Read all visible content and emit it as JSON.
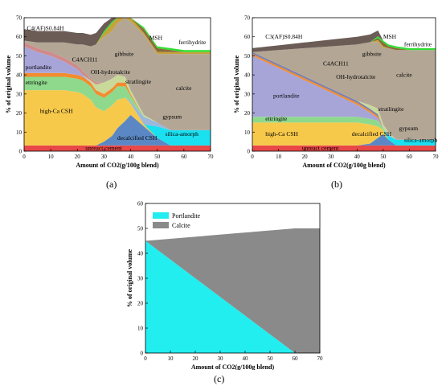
{
  "chart_data": [
    {
      "type": "area",
      "panel_label": "(a)",
      "xlabel": "Amount of CO2(g/100g blend)",
      "ylabel": "% of original volume",
      "xlim": [
        0,
        70
      ],
      "ylim": [
        0,
        70
      ],
      "xticks": [
        0,
        10,
        20,
        30,
        40,
        50,
        60,
        70
      ],
      "yticks": [
        0,
        10,
        20,
        30,
        40,
        50,
        60,
        70
      ],
      "x": [
        0,
        5,
        10,
        15,
        20,
        22,
        25,
        27,
        30,
        33,
        35,
        38,
        40,
        45,
        50,
        55,
        60,
        65,
        70
      ],
      "series": [
        {
          "name": "unreacted cement",
          "color": "#e84848",
          "values": [
            3,
            3,
            3,
            3,
            3,
            3,
            3,
            3,
            3,
            3,
            3,
            3,
            3,
            3,
            3,
            3,
            3,
            3,
            3
          ]
        },
        {
          "name": "decalcified CSH",
          "color": "#5b88c4",
          "values": [
            0,
            0,
            0,
            0,
            0,
            0,
            0,
            0,
            2,
            5,
            9,
            13,
            16,
            10,
            4,
            0,
            0,
            0,
            0
          ]
        },
        {
          "name": "high-Ca CSH",
          "color": "#f7c94b",
          "values": [
            29,
            29,
            29,
            29,
            28,
            27,
            24,
            20,
            16,
            16,
            15,
            12,
            6,
            1,
            0,
            0,
            0,
            0,
            0
          ]
        },
        {
          "name": "silica-amorph",
          "color": "#1ae0f0",
          "values": [
            0,
            0,
            0,
            0,
            0,
            0,
            0,
            0,
            0,
            0,
            0,
            0,
            0,
            0,
            6,
            8,
            8,
            8,
            8
          ]
        },
        {
          "name": "gypsum",
          "color": "#9ab7dc",
          "values": [
            0,
            0,
            0,
            0,
            0,
            0,
            0,
            0,
            0,
            0,
            0,
            0,
            1,
            4,
            2,
            0,
            0,
            0,
            0
          ]
        },
        {
          "name": "ettringite",
          "color": "#8fd98d",
          "values": [
            7,
            7,
            7,
            7,
            7,
            7,
            7,
            7,
            7,
            7,
            7,
            6,
            3,
            0,
            0,
            0,
            0,
            0,
            0
          ]
        },
        {
          "name": "OH-hydrotalcite",
          "color": "#f28c2e",
          "values": [
            2,
            2,
            2,
            2,
            2,
            2,
            2,
            2,
            2,
            2,
            2,
            2,
            1,
            0,
            0,
            0,
            0,
            0,
            0
          ]
        },
        {
          "name": "portlandite",
          "color": "#a7a5d8",
          "values": [
            14,
            11,
            9,
            6,
            3,
            1,
            0,
            0,
            0,
            0,
            0,
            0,
            0,
            0,
            0,
            0,
            0,
            0,
            0
          ]
        },
        {
          "name": "stratlingite",
          "color": "#c9d99a",
          "values": [
            0,
            0,
            0,
            0,
            0,
            0,
            1,
            3,
            6,
            5,
            4,
            3,
            2,
            1,
            0,
            0,
            0,
            0,
            0
          ]
        },
        {
          "name": "C4ACH11",
          "color": "#d08a8a",
          "values": [
            2,
            2,
            2,
            2,
            2,
            2,
            1,
            1,
            0,
            0,
            0,
            0,
            0,
            0,
            0,
            0,
            0,
            0,
            0
          ]
        },
        {
          "name": "calcite",
          "color": "#b3a695",
          "values": [
            1,
            3,
            5,
            8,
            11,
            14,
            17,
            20,
            24,
            25,
            27,
            31,
            36,
            42,
            36,
            40,
            40,
            40,
            40
          ]
        },
        {
          "name": "gibbsite",
          "color": "#c6a23a",
          "values": [
            0,
            0,
            0,
            0,
            0,
            0,
            0,
            0,
            2,
            4,
            3,
            3,
            2,
            1,
            1,
            1,
            1,
            1,
            1
          ]
        },
        {
          "name": "MSH",
          "color": "#8a6a3a",
          "values": [
            0,
            0,
            0,
            0,
            0,
            0,
            0,
            0,
            0,
            0,
            2,
            3,
            3,
            2,
            2,
            1,
            0,
            0,
            0
          ]
        },
        {
          "name": "ferrihydrite",
          "color": "#33dd33",
          "values": [
            0,
            0,
            0,
            0,
            0,
            0,
            0,
            0,
            1,
            1,
            1,
            1,
            1,
            1,
            1,
            1,
            1,
            1,
            1
          ]
        },
        {
          "name": "C4(AF)S0.84H",
          "color": "#6b5c56",
          "values": [
            6,
            6,
            6,
            6,
            6,
            6,
            6,
            6,
            4,
            2,
            1,
            0,
            0,
            0,
            0,
            0,
            0,
            0,
            0
          ]
        }
      ]
    },
    {
      "type": "area",
      "panel_label": "(b)",
      "xlabel": "Amount of CO2(g/100g blend)",
      "ylabel": "% of original volume",
      "xlim": [
        0,
        70
      ],
      "ylim": [
        0,
        70
      ],
      "xticks": [
        0,
        10,
        20,
        30,
        40,
        50,
        60,
        70
      ],
      "yticks": [
        0,
        10,
        20,
        30,
        40,
        50,
        60,
        70
      ],
      "x": [
        0,
        10,
        20,
        30,
        40,
        45,
        48,
        50,
        52,
        55,
        60,
        65,
        70
      ],
      "series": [
        {
          "name": "unreacted cement",
          "color": "#e84848",
          "values": [
            3,
            3,
            3,
            3,
            3,
            3,
            3,
            3,
            3,
            3,
            3,
            3,
            3
          ]
        },
        {
          "name": "decalcified CSH",
          "color": "#5b88c4",
          "values": [
            0,
            0,
            0,
            0,
            0,
            1,
            4,
            6,
            3,
            0,
            0,
            0,
            0
          ]
        },
        {
          "name": "high-Ca CSH",
          "color": "#f7c94b",
          "values": [
            12,
            12,
            12,
            12,
            12,
            10,
            6,
            2,
            0,
            0,
            0,
            0,
            0
          ]
        },
        {
          "name": "silica-amorph",
          "color": "#1ae0f0",
          "values": [
            0,
            0,
            0,
            0,
            0,
            0,
            0,
            0,
            2,
            3,
            3,
            3,
            3
          ]
        },
        {
          "name": "gypsum",
          "color": "#9ab7dc",
          "values": [
            0,
            0,
            0,
            0,
            0,
            0,
            0,
            0,
            1,
            0,
            0,
            0,
            0
          ]
        },
        {
          "name": "ettringite",
          "color": "#8fd98d",
          "values": [
            3,
            3,
            3,
            3,
            3,
            3,
            3,
            1,
            0,
            0,
            0,
            0,
            0
          ]
        },
        {
          "name": "portlandite",
          "color": "#a7a5d8",
          "values": [
            32,
            25.6,
            19.2,
            12.8,
            6.4,
            3.2,
            1.3,
            0,
            0,
            0,
            0,
            0,
            0
          ]
        },
        {
          "name": "OH-hydrotalcite",
          "color": "#f28c2e",
          "values": [
            1,
            1,
            1,
            1,
            1,
            1,
            1,
            0,
            0,
            0,
            0,
            0,
            0
          ]
        },
        {
          "name": "C4ACH11",
          "color": "#7b7fae",
          "values": [
            1,
            1,
            1,
            1,
            1,
            1,
            1,
            0,
            0,
            0,
            0,
            0,
            0
          ]
        },
        {
          "name": "stratlingite",
          "color": "#c9d99a",
          "values": [
            0,
            0,
            0,
            0,
            0,
            2,
            3,
            2,
            1,
            0,
            0,
            0,
            0
          ]
        },
        {
          "name": "calcite",
          "color": "#b3a695",
          "values": [
            0,
            7.4,
            14.8,
            22.2,
            29.6,
            33,
            35,
            40,
            44,
            47,
            47,
            47,
            47
          ]
        },
        {
          "name": "gibbsite",
          "color": "#c6a23a",
          "values": [
            0,
            0,
            0,
            0,
            0,
            0,
            1,
            1,
            0,
            0,
            0,
            0,
            0
          ]
        },
        {
          "name": "MSH",
          "color": "#8a6a3a",
          "values": [
            0,
            0,
            0,
            0,
            0,
            0,
            1,
            2,
            1,
            1,
            0,
            0,
            0
          ]
        },
        {
          "name": "ferrihydrite",
          "color": "#33dd33",
          "values": [
            0,
            0,
            0,
            0,
            0,
            0,
            1,
            1,
            1,
            1,
            1,
            1,
            1
          ]
        },
        {
          "name": "C3(AF)S0.84H",
          "color": "#6b5c56",
          "values": [
            2,
            2.5,
            3,
            3.5,
            4,
            4,
            3,
            0,
            0,
            0,
            0,
            0,
            0
          ]
        }
      ]
    },
    {
      "type": "area",
      "panel_label": "(c)",
      "xlabel": "Amount of CO2(g/100g blend)",
      "ylabel": "% of original volume",
      "xlim": [
        0,
        70
      ],
      "ylim": [
        0,
        60
      ],
      "xticks": [
        0,
        10,
        20,
        30,
        40,
        50,
        60,
        70
      ],
      "yticks": [
        0,
        10,
        20,
        30,
        40,
        50,
        60
      ],
      "legend": "top-left",
      "x": [
        0,
        60,
        70
      ],
      "series": [
        {
          "name": "Portlandite",
          "color": "#22eef0",
          "values": [
            45,
            0,
            0
          ]
        },
        {
          "name": "Calcite",
          "color": "#8a8a8a",
          "values": [
            0,
            50,
            50
          ]
        }
      ]
    }
  ],
  "annotations": {
    "a": [
      {
        "text": "C4(AF)S0.84H",
        "x": 1,
        "y": 63.5
      },
      {
        "text": "C4ACH11",
        "x": 18,
        "y": 47
      },
      {
        "text": "portlandite",
        "x": 0.5,
        "y": 43
      },
      {
        "text": "OH-hydrotalcite",
        "x": 25,
        "y": 40.5
      },
      {
        "text": "ettringite",
        "x": 0.5,
        "y": 35
      },
      {
        "text": "stratlingite",
        "x": 38,
        "y": 35.5
      },
      {
        "text": "calcite",
        "x": 57,
        "y": 32
      },
      {
        "text": "gibbsite",
        "x": 34,
        "y": 50
      },
      {
        "text": "MSH",
        "x": 47,
        "y": 58.5
      },
      {
        "text": "ferrihydrite",
        "x": 58,
        "y": 56
      },
      {
        "text": "high-Ca CSH",
        "x": 6,
        "y": 20
      },
      {
        "text": "decalcified CSH",
        "x": 35,
        "y": 6
      },
      {
        "text": "gypsum",
        "x": 52,
        "y": 17
      },
      {
        "text": "silica-amorph",
        "x": 53,
        "y": 8
      },
      {
        "text": "unreact cement",
        "x": 23,
        "y": 0.6
      }
    ],
    "b": [
      {
        "text": "C3(AF)S0.84H",
        "x": 5,
        "y": 59
      },
      {
        "text": "MSH",
        "x": 50,
        "y": 59
      },
      {
        "text": "ferrihydrite",
        "x": 58,
        "y": 55
      },
      {
        "text": "gibbsite",
        "x": 42,
        "y": 50
      },
      {
        "text": "C4ACH11",
        "x": 27,
        "y": 45
      },
      {
        "text": "calcite",
        "x": 55,
        "y": 39
      },
      {
        "text": "OH-hydrotalcite",
        "x": 32,
        "y": 38
      },
      {
        "text": "portlandite",
        "x": 8,
        "y": 28
      },
      {
        "text": "stratlingite",
        "x": 48,
        "y": 21
      },
      {
        "text": "ettringite",
        "x": 5,
        "y": 16
      },
      {
        "text": "gypsum",
        "x": 56,
        "y": 11
      },
      {
        "text": "high-Ca CSH",
        "x": 5,
        "y": 8
      },
      {
        "text": "decalcified CSH",
        "x": 38,
        "y": 8
      },
      {
        "text": "silica-amorph",
        "x": 58,
        "y": 4.8
      },
      {
        "text": "unreact cement",
        "x": 19,
        "y": 0.6
      }
    ]
  }
}
